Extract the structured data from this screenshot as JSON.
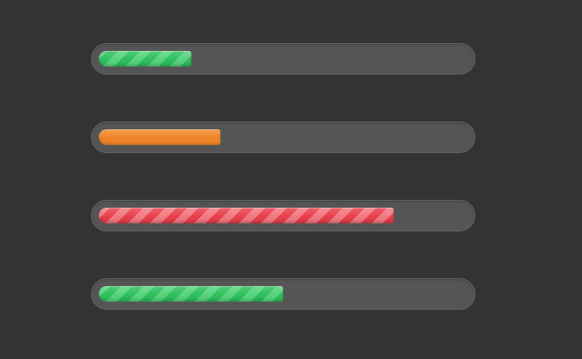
{
  "progress_bars": [
    {
      "value_percent": 25,
      "color": "#2ec05c",
      "stripe_color": "#57d47e",
      "striped": true
    },
    {
      "value_percent": 33,
      "color": "#ef8427",
      "stripe_color": "#f5a04e",
      "striped": false
    },
    {
      "value_percent": 80,
      "color": "#e8404c",
      "stripe_color": "#f27a82",
      "striped": true
    },
    {
      "value_percent": 50,
      "color": "#2ec05c",
      "stripe_color": "#57d47e",
      "striped": true
    }
  ]
}
